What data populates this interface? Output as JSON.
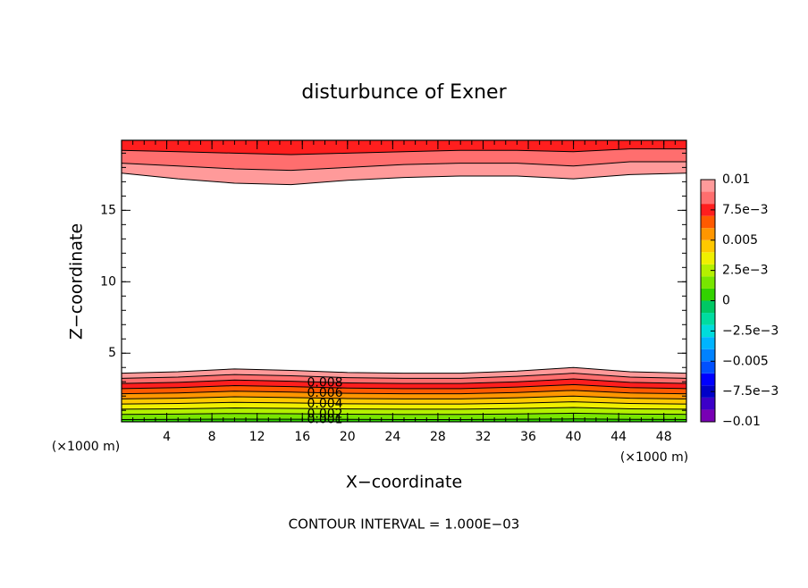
{
  "chart_data": {
    "type": "contour",
    "title": "disturbunce of Exner",
    "xlabel": "X−coordinate",
    "ylabel": "Z−coordinate",
    "x_unit_left": "(×1000 m)",
    "x_unit_right": "(×1000 m)",
    "footer": "CONTOUR INTERVAL = 1.000E−03",
    "xlim": [
      0,
      50
    ],
    "ylim": [
      0.2,
      19.9
    ],
    "xticks": [
      4,
      8,
      12,
      16,
      20,
      24,
      28,
      32,
      36,
      40,
      44,
      48
    ],
    "yticks": [
      5,
      10,
      15
    ],
    "minor_per_major_x": 4,
    "minor_per_major_y": 5,
    "x": [
      0,
      5,
      10,
      15,
      20,
      25,
      30,
      35,
      40,
      45,
      50
    ],
    "lower_contours": [
      {
        "level": 0.001,
        "labeled": true,
        "heights": [
          0.36,
          0.37,
          0.39,
          0.38,
          0.37,
          0.36,
          0.36,
          0.38,
          0.4,
          0.37,
          0.36
        ]
      },
      {
        "level": 0.002,
        "labeled": true,
        "heights": [
          0.72,
          0.74,
          0.78,
          0.76,
          0.73,
          0.72,
          0.72,
          0.75,
          0.8,
          0.74,
          0.72
        ]
      },
      {
        "level": 0.003,
        "labeled": false,
        "heights": [
          1.08,
          1.11,
          1.17,
          1.14,
          1.1,
          1.08,
          1.08,
          1.13,
          1.2,
          1.11,
          1.08
        ]
      },
      {
        "level": 0.004,
        "labeled": true,
        "heights": [
          1.44,
          1.48,
          1.56,
          1.52,
          1.46,
          1.44,
          1.44,
          1.5,
          1.6,
          1.48,
          1.44
        ]
      },
      {
        "level": 0.005,
        "labeled": false,
        "heights": [
          1.8,
          1.85,
          1.95,
          1.9,
          1.83,
          1.8,
          1.8,
          1.88,
          2.0,
          1.85,
          1.8
        ]
      },
      {
        "level": 0.006,
        "labeled": true,
        "heights": [
          2.16,
          2.22,
          2.34,
          2.28,
          2.19,
          2.16,
          2.16,
          2.25,
          2.4,
          2.22,
          2.16
        ]
      },
      {
        "level": 0.007,
        "labeled": false,
        "heights": [
          2.52,
          2.59,
          2.73,
          2.66,
          2.56,
          2.52,
          2.52,
          2.63,
          2.8,
          2.59,
          2.52
        ]
      },
      {
        "level": 0.008,
        "labeled": true,
        "heights": [
          2.88,
          2.96,
          3.12,
          3.04,
          2.92,
          2.88,
          2.88,
          3.0,
          3.2,
          2.96,
          2.88
        ]
      },
      {
        "level": 0.009,
        "labeled": false,
        "heights": [
          3.24,
          3.33,
          3.51,
          3.42,
          3.29,
          3.24,
          3.24,
          3.38,
          3.6,
          3.33,
          3.24
        ]
      },
      {
        "level": 0.01,
        "labeled": false,
        "heights": [
          3.6,
          3.7,
          3.9,
          3.8,
          3.65,
          3.6,
          3.6,
          3.75,
          4.0,
          3.7,
          3.6
        ]
      }
    ],
    "upper_contours": [
      {
        "level": 0.01,
        "labeled": false,
        "heights": [
          17.6,
          17.2,
          16.9,
          16.8,
          17.1,
          17.3,
          17.4,
          17.4,
          17.2,
          17.5,
          17.6
        ]
      },
      {
        "level": 0.009,
        "labeled": false,
        "heights": [
          18.3,
          18.1,
          17.9,
          17.8,
          18.0,
          18.2,
          18.3,
          18.3,
          18.1,
          18.4,
          18.4
        ]
      },
      {
        "level": 0.008,
        "labeled": false,
        "heights": [
          19.2,
          19.1,
          19.0,
          18.9,
          19.0,
          19.1,
          19.2,
          19.2,
          19.1,
          19.3,
          19.3
        ]
      }
    ],
    "clim": [
      -0.01,
      0.01
    ],
    "colors": [
      "#7800b4",
      "#3c00c8",
      "#0000c8",
      "#0000ff",
      "#0050ff",
      "#0082ff",
      "#00b4ff",
      "#00dcdc",
      "#00dca0",
      "#00c864",
      "#32d200",
      "#78e600",
      "#b4f000",
      "#f0f000",
      "#ffc800",
      "#ff9600",
      "#ff5a00",
      "#ff1e1e",
      "#ff6e6e",
      "#ff9a9a"
    ],
    "cticks": [
      0.01,
      {
        "value": 0.0075,
        "label": "7.5e−3"
      },
      0.005,
      {
        "value": 0.0025,
        "label": "2.5e−3"
      },
      0,
      {
        "value": -0.0025,
        "label": "−2.5e−3"
      },
      {
        "value": -0.005,
        "label": "−0.005"
      },
      {
        "value": -0.0075,
        "label": "−7.5e−3"
      },
      {
        "value": -0.01,
        "label": "−0.01"
      }
    ]
  }
}
